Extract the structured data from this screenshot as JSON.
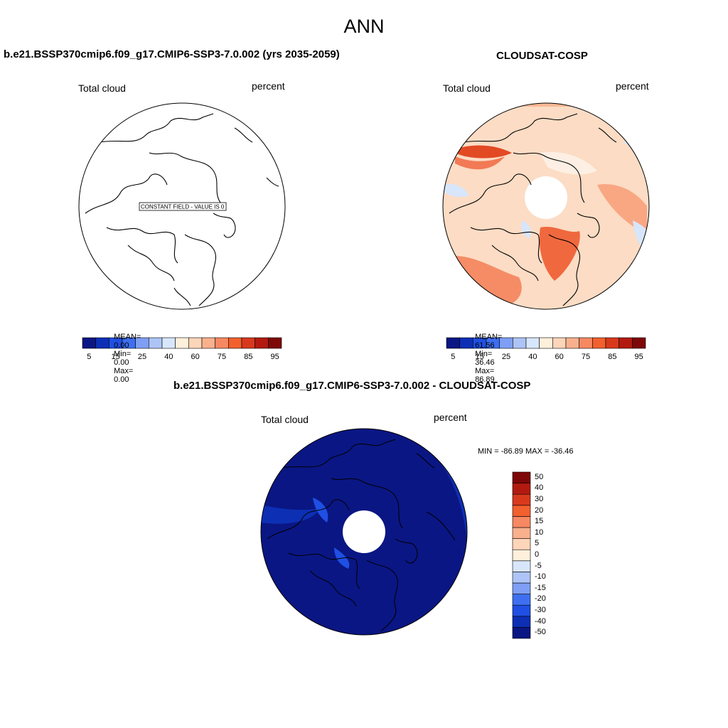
{
  "title": "ANN",
  "panels": [
    {
      "title": "b.e21.BSSP370cmip6.f09_g17.CMIP6-SSP3-7.0.002 (yrs 2035-2059)",
      "variable": "Total cloud",
      "units": "percent",
      "note": "CONSTANT FIELD - VALUE IS 0",
      "stats": {
        "mean_label": "MEAN=",
        "mean": "0.00",
        "min_label": "Min=",
        "min": "0.00",
        "max_label": "Max=",
        "max": "0.00"
      }
    },
    {
      "title": "CLOUDSAT-COSP",
      "variable": "Total cloud",
      "units": "percent",
      "stats": {
        "mean_label": "MEAN=",
        "mean": "61.56",
        "min_label": "Min=",
        "min": "36.46",
        "max_label": "Max=",
        "max": "86.89"
      }
    },
    {
      "title": "b.e21.BSSP370cmip6.f09_g17.CMIP6-SSP3-7.0.002 - CLOUDSAT-COSP",
      "variable": "Total cloud",
      "units": "percent",
      "minmax": "MIN = -86.89 MAX = -36.46"
    }
  ],
  "colorbar_abs": {
    "colors": [
      "#0a1683",
      "#0d2fb4",
      "#1f4fe3",
      "#3e6ff0",
      "#7f9ff5",
      "#aec4f6",
      "#d8e6fb",
      "#fff0dc",
      "#fdd5b9",
      "#f9b08d",
      "#f68862",
      "#f2602e",
      "#d8391c",
      "#b21a10",
      "#7e0707"
    ],
    "labels": [
      "5",
      "15",
      "25",
      "40",
      "60",
      "75",
      "85",
      "95"
    ]
  },
  "colorbar_diff": {
    "colors": [
      "#0a1683",
      "#0d2fb4",
      "#1f4fe3",
      "#3e6ff0",
      "#7f9ff5",
      "#aec4f6",
      "#d8e6fb",
      "#fff0dc",
      "#fdd5b9",
      "#f9b08d",
      "#f68862",
      "#f2602e",
      "#d8391c",
      "#b21a10",
      "#7e0707"
    ],
    "labels": [
      "-50",
      "-40",
      "-30",
      "-20",
      "-15",
      "-10",
      "-5",
      "0",
      "5",
      "10",
      "15",
      "20",
      "30",
      "40",
      "50"
    ]
  }
}
